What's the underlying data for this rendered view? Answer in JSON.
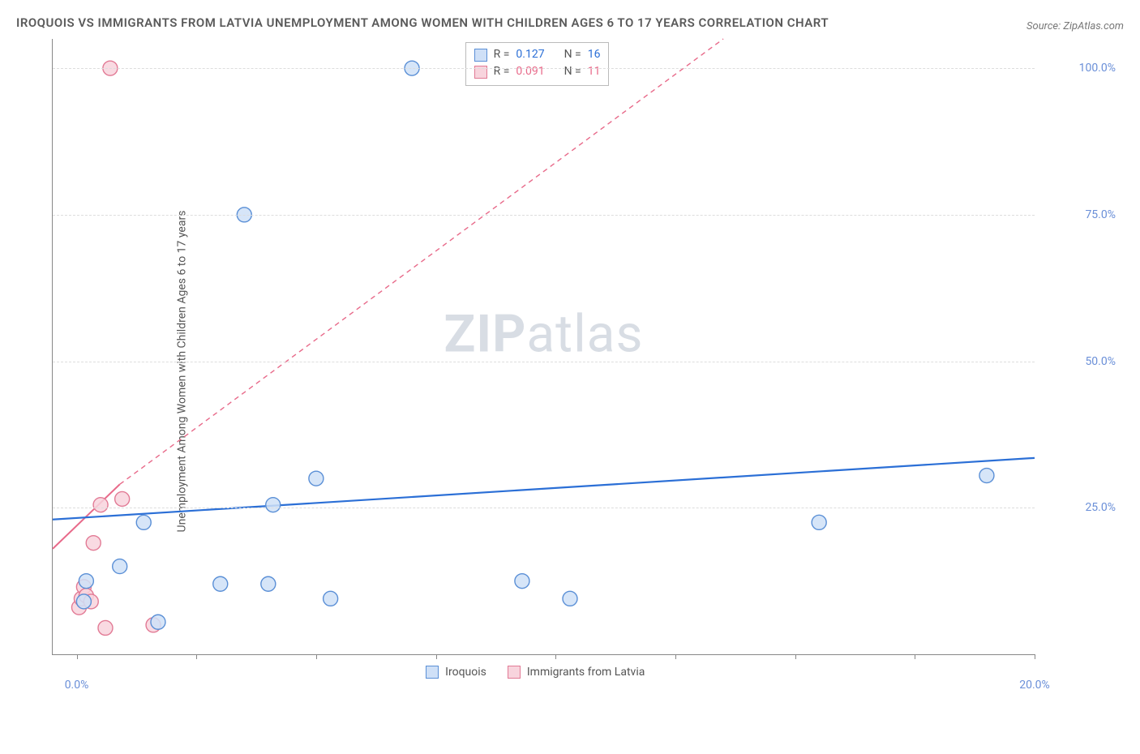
{
  "title": "IROQUOIS VS IMMIGRANTS FROM LATVIA UNEMPLOYMENT AMONG WOMEN WITH CHILDREN AGES 6 TO 17 YEARS CORRELATION CHART",
  "source_label": "Source: ZipAtlas.com",
  "y_axis_title": "Unemployment Among Women with Children Ages 6 to 17 years",
  "watermark": {
    "bold": "ZIP",
    "rest": "atlas"
  },
  "chart": {
    "type": "scatter",
    "background_color": "#ffffff",
    "grid_color": "#dddddd",
    "axis_color": "#888888",
    "xlim": [
      -0.5,
      20.0
    ],
    "ylim": [
      0,
      105
    ],
    "x_ticks": [
      0.0,
      20.0
    ],
    "x_tick_labels": [
      "0.0%",
      "20.0%"
    ],
    "x_minor_ticks": [
      2.5,
      5.0,
      7.5,
      10.0,
      12.5,
      15.0,
      17.5
    ],
    "y_ticks": [
      25.0,
      50.0,
      75.0,
      100.0
    ],
    "y_tick_labels": [
      "25.0%",
      "50.0%",
      "75.0%",
      "100.0%"
    ],
    "marker_radius": 9,
    "marker_stroke_width": 1.4,
    "series": {
      "iroquois": {
        "label": "Iroquois",
        "fill": "#cfe0f7",
        "stroke": "#5a8fd6",
        "trend_color": "#2b6fd6",
        "trend_width": 2.2,
        "trend_dash": "none",
        "stats": {
          "R": "0.127",
          "N": "16"
        },
        "points": [
          {
            "x": 0.15,
            "y": 9.0
          },
          {
            "x": 0.2,
            "y": 12.5
          },
          {
            "x": 0.9,
            "y": 15.0
          },
          {
            "x": 1.4,
            "y": 22.5
          },
          {
            "x": 1.7,
            "y": 5.5
          },
          {
            "x": 3.0,
            "y": 12.0
          },
          {
            "x": 3.5,
            "y": 75.0
          },
          {
            "x": 4.0,
            "y": 12.0
          },
          {
            "x": 4.1,
            "y": 25.5
          },
          {
            "x": 5.0,
            "y": 30.0
          },
          {
            "x": 5.3,
            "y": 9.5
          },
          {
            "x": 7.0,
            "y": 100.0
          },
          {
            "x": 9.3,
            "y": 12.5
          },
          {
            "x": 10.3,
            "y": 9.5
          },
          {
            "x": 15.5,
            "y": 22.5
          },
          {
            "x": 19.0,
            "y": 30.5
          }
        ],
        "trend": {
          "x1": -0.5,
          "y1": 23.0,
          "x2": 20.0,
          "y2": 33.5
        }
      },
      "latvia": {
        "label": "Immigrants from Latvia",
        "fill": "#f8d4dd",
        "stroke": "#e27a95",
        "trend_color": "#e86a8a",
        "trend_width": 2,
        "trend_dash": "6,5",
        "stats": {
          "R": "0.091",
          "N": "11"
        },
        "points": [
          {
            "x": 0.05,
            "y": 8.0
          },
          {
            "x": 0.1,
            "y": 9.5
          },
          {
            "x": 0.15,
            "y": 11.5
          },
          {
            "x": 0.2,
            "y": 10.0
          },
          {
            "x": 0.3,
            "y": 9.0
          },
          {
            "x": 0.35,
            "y": 19.0
          },
          {
            "x": 0.5,
            "y": 25.5
          },
          {
            "x": 0.6,
            "y": 4.5
          },
          {
            "x": 0.7,
            "y": 100.0
          },
          {
            "x": 0.95,
            "y": 26.5
          },
          {
            "x": 1.6,
            "y": 5.0
          }
        ],
        "trend_solid": {
          "x1": -0.5,
          "y1": 18.0,
          "x2": 0.9,
          "y2": 29.0
        },
        "trend_dashed": {
          "x1": 0.9,
          "y1": 29.0,
          "x2": 13.5,
          "y2": 105.0
        }
      }
    }
  },
  "stats_labels": {
    "R": "R =",
    "N": "N ="
  },
  "legend": {
    "iroquois": "Iroquois",
    "latvia": "Immigrants from Latvia"
  }
}
